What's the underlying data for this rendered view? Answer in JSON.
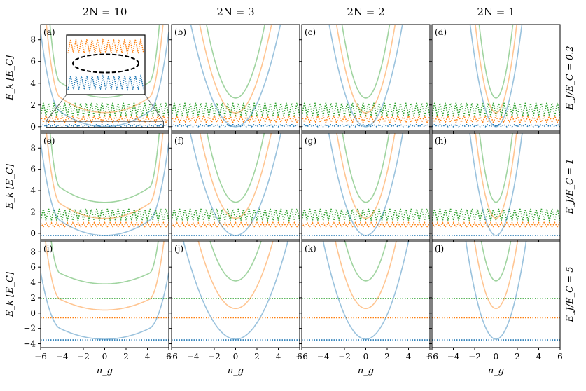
{
  "chart_data": {
    "type": "line",
    "column_titles": [
      "2N = 10",
      "2N = 3",
      "2N = 2",
      "2N = 1"
    ],
    "column_N": [
      10,
      3,
      2,
      1
    ],
    "row_titles": [
      "E_J/E_C = 0.2",
      "E_J/E_C = 1",
      "E_J/E_C = 5"
    ],
    "row_EJ": [
      0.2,
      1,
      5
    ],
    "xlabel": "n_g",
    "ylabel": "E_k [E_C]",
    "xlim": [
      -6,
      6
    ],
    "xticks": [
      -6,
      -4,
      -2,
      0,
      2,
      4,
      6
    ],
    "row_ylims": [
      [
        -0.4,
        9.4
      ],
      [
        -0.6,
        9.4
      ],
      [
        -4.5,
        9.4
      ]
    ],
    "row_yticks": [
      [
        0,
        2,
        4,
        6,
        8
      ],
      [
        0,
        2,
        4,
        6,
        8
      ],
      [
        -4,
        -2,
        0,
        2,
        4,
        6,
        8
      ]
    ],
    "panel_labels": [
      "(a)",
      "(b)",
      "(c)",
      "(d)",
      "(e)",
      "(f)",
      "(g)",
      "(h)",
      "(i)",
      "(j)",
      "(k)",
      "(l)"
    ],
    "series_colors": {
      "k0": "#1f77b4",
      "k1": "#ff7f0e",
      "k2": "#2ca02c"
    },
    "line_style": {
      "solid_opacity": 0.45,
      "dotted": "k-th level of periodic reference"
    },
    "row_dotted_levels": [
      {
        "k0": [
          0.0,
          0.2
        ],
        "k1": [
          0.4,
          1.0
        ],
        "k2": [
          1.0,
          2.2
        ]
      },
      {
        "k0": [
          -0.2,
          -0.2
        ],
        "k1": [
          0.6,
          1.0
        ],
        "k2": [
          1.2,
          2.3
        ]
      },
      {
        "k0": [
          -3.5,
          -3.5
        ],
        "k1": [
          -0.6,
          -0.6
        ],
        "k2": [
          1.9,
          1.9
        ]
      }
    ],
    "inset": {
      "panel": "(a)",
      "shows": "zoom of low-energy bands with dashed ellipse",
      "x_range": [
        -6,
        6
      ],
      "y_range": [
        -0.2,
        0.6
      ]
    }
  }
}
